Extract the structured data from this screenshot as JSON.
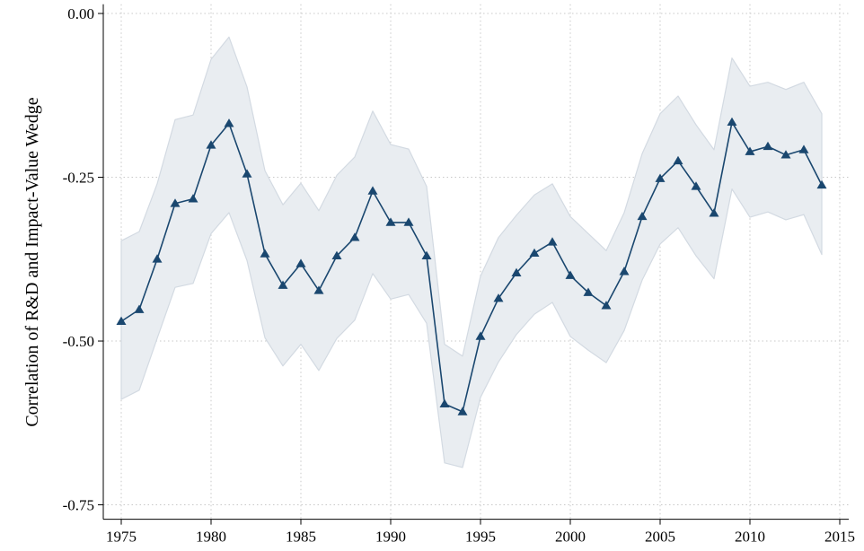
{
  "chart_data": {
    "type": "line",
    "y_label": "Correlation of R&D and Impact-Value Wedge",
    "x": [
      1975,
      1976,
      1977,
      1978,
      1979,
      1980,
      1981,
      1982,
      1983,
      1984,
      1985,
      1986,
      1987,
      1988,
      1989,
      1990,
      1991,
      1992,
      1993,
      1994,
      1995,
      1996,
      1997,
      1998,
      1999,
      2000,
      2001,
      2002,
      2003,
      2004,
      2005,
      2006,
      2007,
      2008,
      2009,
      2010,
      2011,
      2012,
      2013,
      2014
    ],
    "values": [
      -0.47,
      -0.452,
      -0.375,
      -0.29,
      -0.283,
      -0.201,
      -0.168,
      -0.245,
      -0.367,
      -0.415,
      -0.382,
      -0.423,
      -0.37,
      -0.342,
      -0.271,
      -0.319,
      -0.319,
      -0.37,
      -0.596,
      -0.608,
      -0.493,
      -0.435,
      -0.396,
      -0.366,
      -0.349,
      -0.4,
      -0.426,
      -0.446,
      -0.394,
      -0.31,
      -0.252,
      -0.225,
      -0.264,
      -0.305,
      -0.166,
      -0.211,
      -0.203,
      -0.216,
      -0.208,
      -0.262
    ],
    "ci_upper": [
      -0.347,
      -0.333,
      -0.26,
      -0.162,
      -0.155,
      -0.07,
      -0.036,
      -0.112,
      -0.24,
      -0.292,
      -0.259,
      -0.301,
      -0.247,
      -0.219,
      -0.149,
      -0.2,
      -0.207,
      -0.264,
      -0.505,
      -0.523,
      -0.401,
      -0.342,
      -0.308,
      -0.277,
      -0.26,
      -0.31,
      -0.336,
      -0.362,
      -0.304,
      -0.214,
      -0.153,
      -0.126,
      -0.17,
      -0.208,
      -0.068,
      -0.111,
      -0.105,
      -0.116,
      -0.105,
      -0.153
    ],
    "ci_lower": [
      -0.589,
      -0.575,
      -0.496,
      -0.418,
      -0.412,
      -0.336,
      -0.304,
      -0.377,
      -0.495,
      -0.538,
      -0.505,
      -0.545,
      -0.496,
      -0.468,
      -0.397,
      -0.436,
      -0.429,
      -0.473,
      -0.686,
      -0.693,
      -0.586,
      -0.532,
      -0.49,
      -0.459,
      -0.441,
      -0.493,
      -0.514,
      -0.533,
      -0.484,
      -0.407,
      -0.352,
      -0.327,
      -0.37,
      -0.405,
      -0.268,
      -0.311,
      -0.303,
      -0.315,
      -0.307,
      -0.368
    ],
    "color": "#1a476f",
    "band_color": "#e9edf1",
    "band_edge_color": "#d3dae2",
    "xlim": [
      1974,
      2015.5
    ],
    "ylim": [
      -0.772,
      0.014
    ],
    "xticks": [
      1975,
      1980,
      1985,
      1990,
      1995,
      2000,
      2005,
      2010,
      2015
    ],
    "yticks": [
      {
        "value": 0,
        "label": "0.00"
      },
      {
        "value": -0.25,
        "label": "-0.25"
      },
      {
        "value": -0.5,
        "label": "-0.50"
      },
      {
        "value": -0.75,
        "label": "-0.75"
      }
    ],
    "grid": true
  }
}
